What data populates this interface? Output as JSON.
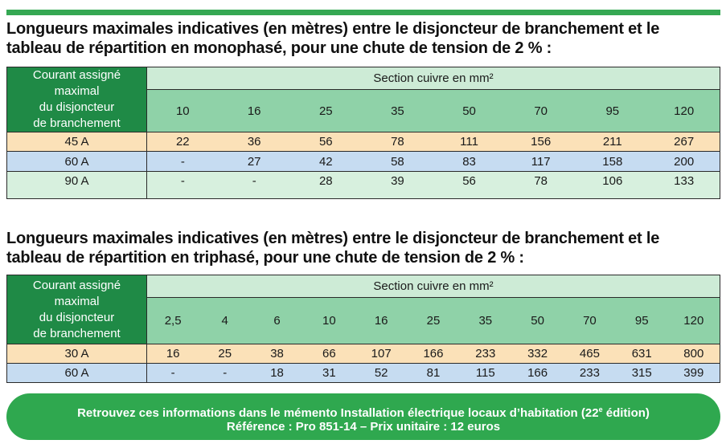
{
  "colors": {
    "accent_green": "#35a853",
    "header_dark_green": "#1f8a46",
    "header_light_green": "#cdebd6",
    "section_green": "#8fd2a8",
    "row_peach": "#fbe1b8",
    "row_blue": "#c6dcf1",
    "row_mint": "#d7f0de"
  },
  "mono": {
    "title_line1": "Longueurs maximales indicatives (en mètres) entre le disjoncteur de branchement et le",
    "title_line2": "tableau de répartition en monophasé, pour une chute de tension de 2 % :",
    "header_left": [
      "Courant assigné",
      "maximal",
      "du disjoncteur",
      "de branchement"
    ],
    "header_top": "Section cuivre en mm²",
    "sections": [
      "10",
      "16",
      "25",
      "35",
      "50",
      "70",
      "95",
      "120"
    ],
    "rows": [
      {
        "label": "45 A",
        "values": [
          "22",
          "36",
          "56",
          "78",
          "111",
          "156",
          "211",
          "267"
        ]
      },
      {
        "label": "60 A",
        "values": [
          "-",
          "27",
          "42",
          "58",
          "83",
          "117",
          "158",
          "200"
        ]
      },
      {
        "label": "90 A",
        "values": [
          "-",
          "-",
          "28",
          "39",
          "56",
          "78",
          "106",
          "133"
        ]
      }
    ]
  },
  "tri": {
    "title_line1": "Longueurs maximales indicatives (en mètres) entre le disjoncteur de branchement et le",
    "title_line2": "tableau de répartition en triphasé, pour une chute de tension de 2 % :",
    "header_left": [
      "Courant assigné",
      "maximal",
      "du disjoncteur",
      "de branchement"
    ],
    "header_top": "Section cuivre en mm²",
    "sections": [
      "2,5",
      "4",
      "6",
      "10",
      "16",
      "25",
      "35",
      "50",
      "70",
      "95",
      "120"
    ],
    "rows": [
      {
        "label": "30 A",
        "values": [
          "16",
          "25",
          "38",
          "66",
          "107",
          "166",
          "233",
          "332",
          "465",
          "631",
          "800"
        ]
      },
      {
        "label": "60 A",
        "values": [
          "-",
          "-",
          "18",
          "31",
          "52",
          "81",
          "115",
          "166",
          "233",
          "315",
          "399"
        ]
      }
    ]
  },
  "banner": {
    "line1_pre": "Retrouvez ces informations dans le mémento Installation électrique locaux d’habitation (22",
    "line1_sup": "e",
    "line1_post": " édition)",
    "line2": "Référence : Pro 851-14 – Prix unitaire : 12 euros"
  }
}
